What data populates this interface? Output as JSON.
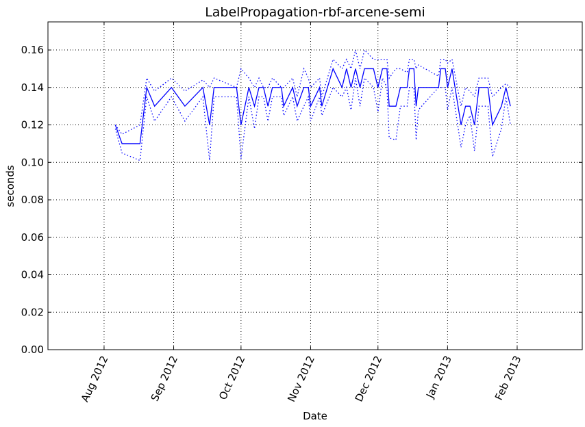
{
  "chart_data": {
    "type": "line",
    "title": "LabelPropagation-rbf-arcene-semi",
    "xlabel": "Date",
    "ylabel": "seconds",
    "x": [
      5,
      8,
      16,
      19,
      22.5,
      30,
      36,
      44,
      47,
      49,
      59,
      61,
      64.5,
      67,
      69,
      71,
      73,
      75,
      79,
      80,
      84,
      86,
      89,
      91,
      92,
      96,
      97,
      102,
      106,
      108,
      110,
      112,
      114,
      116,
      120,
      122,
      124,
      126,
      127,
      130,
      132,
      135,
      136,
      138,
      139,
      140,
      149,
      150,
      152,
      153,
      155,
      159,
      161,
      163,
      165,
      167,
      171,
      173,
      177,
      179,
      181
    ],
    "series": [
      {
        "color": "#0000ff",
        "linestyle": "solid",
        "values": [
          0.12,
          0.11,
          0.11,
          0.14,
          0.13,
          0.14,
          0.13,
          0.14,
          0.12,
          0.14,
          0.14,
          0.12,
          0.14,
          0.13,
          0.14,
          0.14,
          0.13,
          0.14,
          0.14,
          0.13,
          0.14,
          0.13,
          0.14,
          0.14,
          0.13,
          0.14,
          0.13,
          0.15,
          0.14,
          0.15,
          0.14,
          0.15,
          0.14,
          0.15,
          0.15,
          0.14,
          0.15,
          0.15,
          0.13,
          0.13,
          0.14,
          0.14,
          0.15,
          0.15,
          0.13,
          0.14,
          0.14,
          0.15,
          0.15,
          0.14,
          0.15,
          0.12,
          0.13,
          0.13,
          0.12,
          0.14,
          0.14,
          0.12,
          0.13,
          0.14,
          0.13
        ]
      },
      {
        "color": "#0000ff",
        "linestyle": "dotted",
        "values": [
          0.12,
          0.115,
          0.12,
          0.145,
          0.138,
          0.145,
          0.138,
          0.144,
          0.14,
          0.145,
          0.14,
          0.15,
          0.145,
          0.14,
          0.145,
          0.14,
          0.14,
          0.145,
          0.14,
          0.14,
          0.145,
          0.135,
          0.15,
          0.145,
          0.14,
          0.145,
          0.135,
          0.155,
          0.15,
          0.155,
          0.15,
          0.16,
          0.15,
          0.16,
          0.155,
          0.155,
          0.155,
          0.155,
          0.145,
          0.15,
          0.15,
          0.148,
          0.155,
          0.155,
          0.15,
          0.152,
          0.146,
          0.155,
          0.155,
          0.153,
          0.155,
          0.13,
          0.14,
          0.138,
          0.135,
          0.145,
          0.145,
          0.135,
          0.14,
          0.142,
          0.14
        ]
      },
      {
        "color": "#0000ff",
        "linestyle": "dotted",
        "values": [
          0.118,
          0.105,
          0.101,
          0.135,
          0.122,
          0.135,
          0.122,
          0.135,
          0.101,
          0.135,
          0.135,
          0.102,
          0.135,
          0.118,
          0.135,
          0.135,
          0.122,
          0.135,
          0.135,
          0.125,
          0.135,
          0.122,
          0.13,
          0.135,
          0.122,
          0.135,
          0.125,
          0.14,
          0.135,
          0.14,
          0.128,
          0.145,
          0.13,
          0.145,
          0.14,
          0.127,
          0.145,
          0.14,
          0.113,
          0.112,
          0.13,
          0.13,
          0.14,
          0.14,
          0.112,
          0.128,
          0.14,
          0.14,
          0.14,
          0.128,
          0.14,
          0.108,
          0.12,
          0.125,
          0.106,
          0.13,
          0.13,
          0.103,
          0.118,
          0.135,
          0.12
        ]
      }
    ],
    "xlim": [
      -25,
      213
    ],
    "xticks": [
      {
        "value": 0,
        "label": "Aug 2012"
      },
      {
        "value": 31,
        "label": "Sep 2012"
      },
      {
        "value": 61,
        "label": "Oct 2012"
      },
      {
        "value": 92,
        "label": "Nov 2012"
      },
      {
        "value": 122,
        "label": "Dec 2012"
      },
      {
        "value": 153,
        "label": "Jan 2013"
      },
      {
        "value": 184,
        "label": "Feb 2013"
      }
    ],
    "ylim": [
      0,
      0.175
    ],
    "yticks": [
      {
        "value": 0,
        "label": "0.00"
      },
      {
        "value": 0.02,
        "label": "0.02"
      },
      {
        "value": 0.04,
        "label": "0.04"
      },
      {
        "value": 0.06,
        "label": "0.06"
      },
      {
        "value": 0.08,
        "label": "0.08"
      },
      {
        "value": 0.1,
        "label": "0.10"
      },
      {
        "value": 0.12,
        "label": "0.12"
      },
      {
        "value": 0.14,
        "label": "0.14"
      },
      {
        "value": 0.16,
        "label": "0.16"
      }
    ],
    "grid": true
  }
}
